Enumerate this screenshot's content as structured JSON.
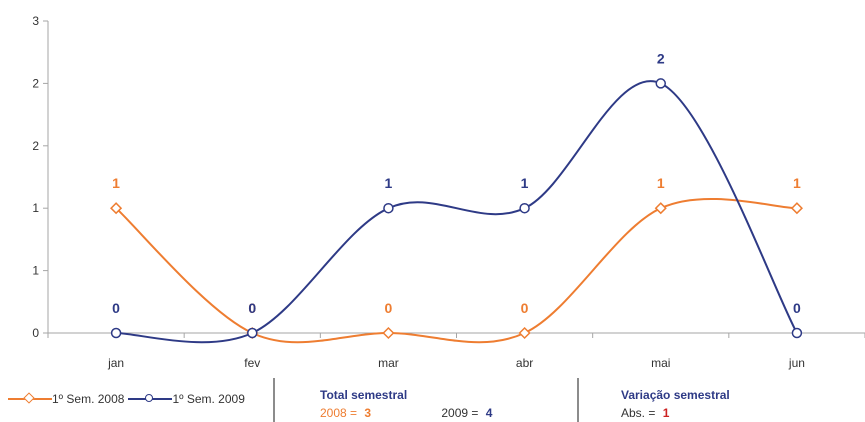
{
  "chart_data": {
    "type": "line",
    "categories": [
      "jan",
      "fev",
      "mar",
      "abr",
      "mai",
      "jun"
    ],
    "y_tick_labels": [
      "0",
      "1",
      "1",
      "2",
      "2",
      "3"
    ],
    "ylim": [
      0,
      2.5
    ],
    "grid": false,
    "series": [
      {
        "name": "1º Sem. 2008",
        "values": [
          1,
          0,
          0,
          0,
          1,
          1
        ],
        "data_labels": [
          "1",
          "0",
          "0",
          "0",
          "1",
          "1"
        ],
        "color": "#ee7d31",
        "marker": "diamond"
      },
      {
        "name": "1º Sem. 2009",
        "values": [
          0,
          0,
          1,
          1,
          2,
          0
        ],
        "data_labels": [
          "0",
          "0",
          "1",
          "1",
          "2",
          "0"
        ],
        "color": "#2e3a86",
        "marker": "circle"
      }
    ],
    "legend_position": "bottom-left"
  },
  "summary": {
    "total": {
      "title": "Total semestral",
      "label_2008": "2008 =",
      "value_2008": "3",
      "label_2009": "2009 =",
      "value_2009": "4"
    },
    "variation": {
      "title": "Variação semestral",
      "label_abs": "Abs. =",
      "value_abs": "1"
    }
  },
  "colors": {
    "series_2008": "#ee7d31",
    "series_2009": "#2e3a86",
    "axis": "#a6a6a6",
    "text": "#333333",
    "accent_red": "#cc2222"
  }
}
